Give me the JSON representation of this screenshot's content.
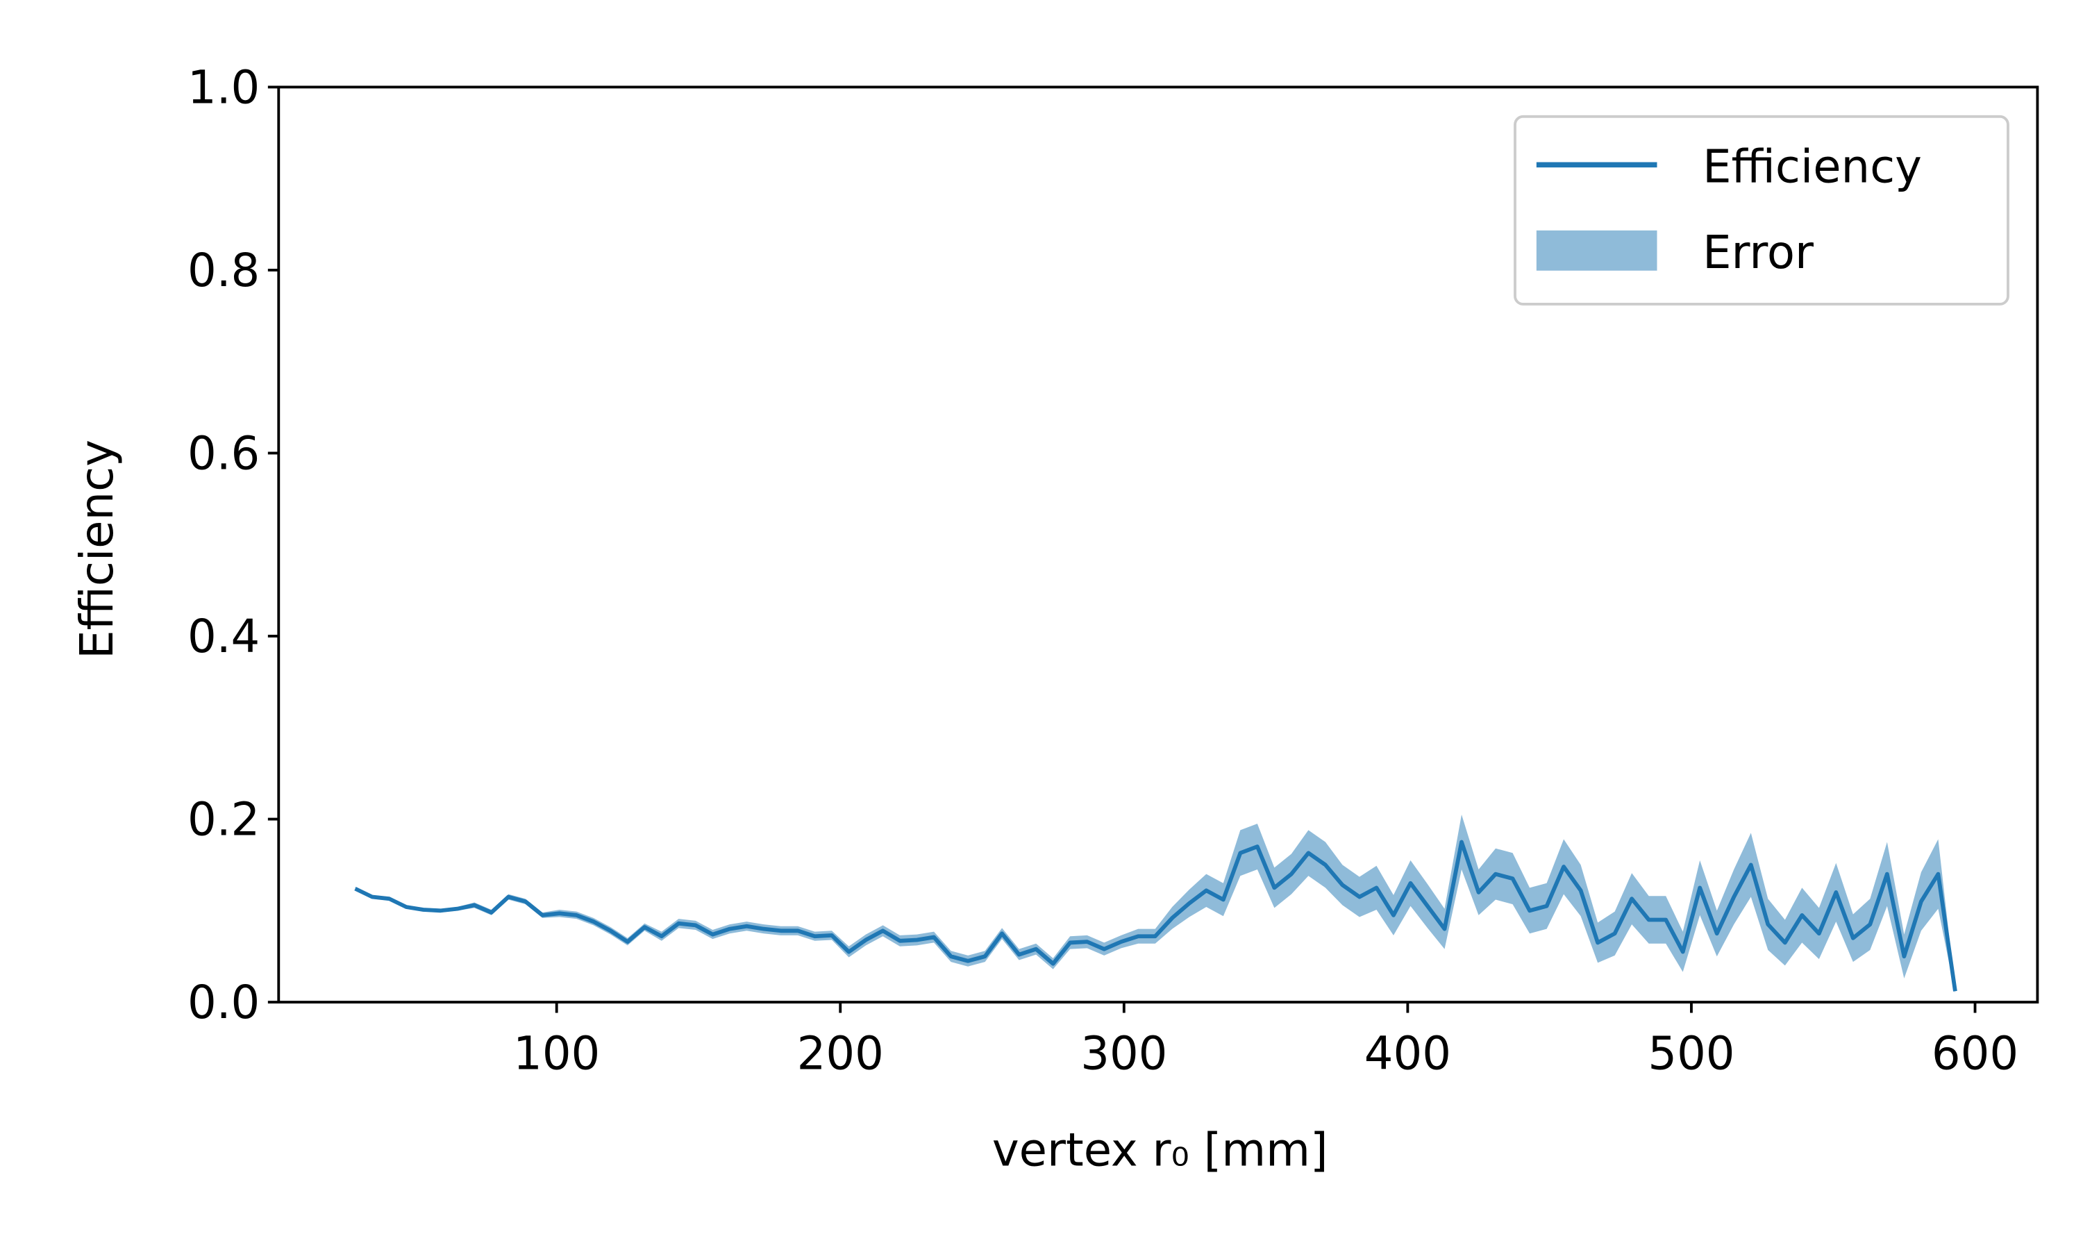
{
  "chart_data": {
    "type": "line",
    "x_label": "vertex r₀ [mm]",
    "y_label": "Efficiency",
    "x": [
      29,
      35,
      41,
      47,
      53,
      59,
      65,
      71,
      77,
      83,
      89,
      95,
      101,
      107,
      113,
      119,
      125,
      131,
      137,
      143,
      149,
      155,
      161,
      167,
      173,
      179,
      185,
      191,
      197,
      203,
      209,
      215,
      221,
      227,
      233,
      239,
      245,
      251,
      257,
      263,
      269,
      275,
      281,
      287,
      293,
      299,
      305,
      311,
      317,
      323,
      329,
      335,
      341,
      347,
      353,
      359,
      365,
      371,
      377,
      383,
      389,
      395,
      401,
      407,
      413,
      419,
      425,
      431,
      437,
      443,
      449,
      455,
      461,
      467,
      473,
      479,
      485,
      491,
      497,
      503,
      509,
      515,
      521,
      527,
      533,
      539,
      545,
      551,
      557,
      563,
      569,
      575,
      581,
      587,
      593
    ],
    "series": [
      {
        "name": "Efficiency",
        "color": "#1f77b4",
        "values": [
          0.124,
          0.115,
          0.113,
          0.104,
          0.101,
          0.1,
          0.102,
          0.106,
          0.098,
          0.115,
          0.11,
          0.095,
          0.097,
          0.095,
          0.088,
          0.078,
          0.066,
          0.082,
          0.072,
          0.086,
          0.084,
          0.074,
          0.08,
          0.083,
          0.08,
          0.078,
          0.078,
          0.072,
          0.073,
          0.055,
          0.068,
          0.078,
          0.067,
          0.068,
          0.071,
          0.05,
          0.045,
          0.05,
          0.075,
          0.052,
          0.058,
          0.042,
          0.065,
          0.066,
          0.058,
          0.066,
          0.072,
          0.072,
          0.092,
          0.108,
          0.122,
          0.112,
          0.163,
          0.17,
          0.125,
          0.14,
          0.163,
          0.15,
          0.128,
          0.115,
          0.125,
          0.095,
          0.13,
          0.105,
          0.08,
          0.175,
          0.12,
          0.14,
          0.135,
          0.1,
          0.105,
          0.148,
          0.122,
          0.065,
          0.075,
          0.113,
          0.09,
          0.09,
          0.055,
          0.125,
          0.075,
          0.115,
          0.15,
          0.085,
          0.065,
          0.095,
          0.075,
          0.12,
          0.07,
          0.085,
          0.14,
          0.05,
          0.11,
          0.14,
          0.012
        ]
      },
      {
        "name": "Error",
        "color": "#1f77b4",
        "errors": [
          0.002,
          0.002,
          0.002,
          0.002,
          0.002,
          0.002,
          0.002,
          0.003,
          0.003,
          0.003,
          0.003,
          0.003,
          0.004,
          0.004,
          0.004,
          0.004,
          0.004,
          0.004,
          0.005,
          0.005,
          0.005,
          0.005,
          0.005,
          0.005,
          0.005,
          0.005,
          0.005,
          0.005,
          0.005,
          0.006,
          0.006,
          0.006,
          0.006,
          0.006,
          0.006,
          0.006,
          0.006,
          0.006,
          0.006,
          0.006,
          0.006,
          0.006,
          0.007,
          0.007,
          0.007,
          0.007,
          0.008,
          0.008,
          0.012,
          0.015,
          0.018,
          0.018,
          0.025,
          0.025,
          0.022,
          0.022,
          0.025,
          0.025,
          0.022,
          0.022,
          0.024,
          0.022,
          0.025,
          0.024,
          0.022,
          0.03,
          0.025,
          0.028,
          0.028,
          0.025,
          0.025,
          0.03,
          0.028,
          0.022,
          0.024,
          0.028,
          0.026,
          0.026,
          0.022,
          0.03,
          0.025,
          0.03,
          0.035,
          0.028,
          0.025,
          0.03,
          0.028,
          0.032,
          0.026,
          0.028,
          0.035,
          0.024,
          0.032,
          0.038,
          0.002
        ]
      }
    ],
    "xlim": [
      2,
      622
    ],
    "xticks": [
      100,
      200,
      300,
      400,
      500,
      600
    ],
    "ylim": [
      0,
      1
    ],
    "yticks": [
      {
        "value": 0,
        "label": "0.0"
      },
      {
        "value": 0.2,
        "label": "0.2"
      },
      {
        "value": 0.4,
        "label": "0.4"
      },
      {
        "value": 0.6,
        "label": "0.6"
      },
      {
        "value": 0.8,
        "label": "0.8"
      },
      {
        "value": 1,
        "label": "1.0"
      }
    ],
    "legend": "upper right",
    "grid": false
  }
}
